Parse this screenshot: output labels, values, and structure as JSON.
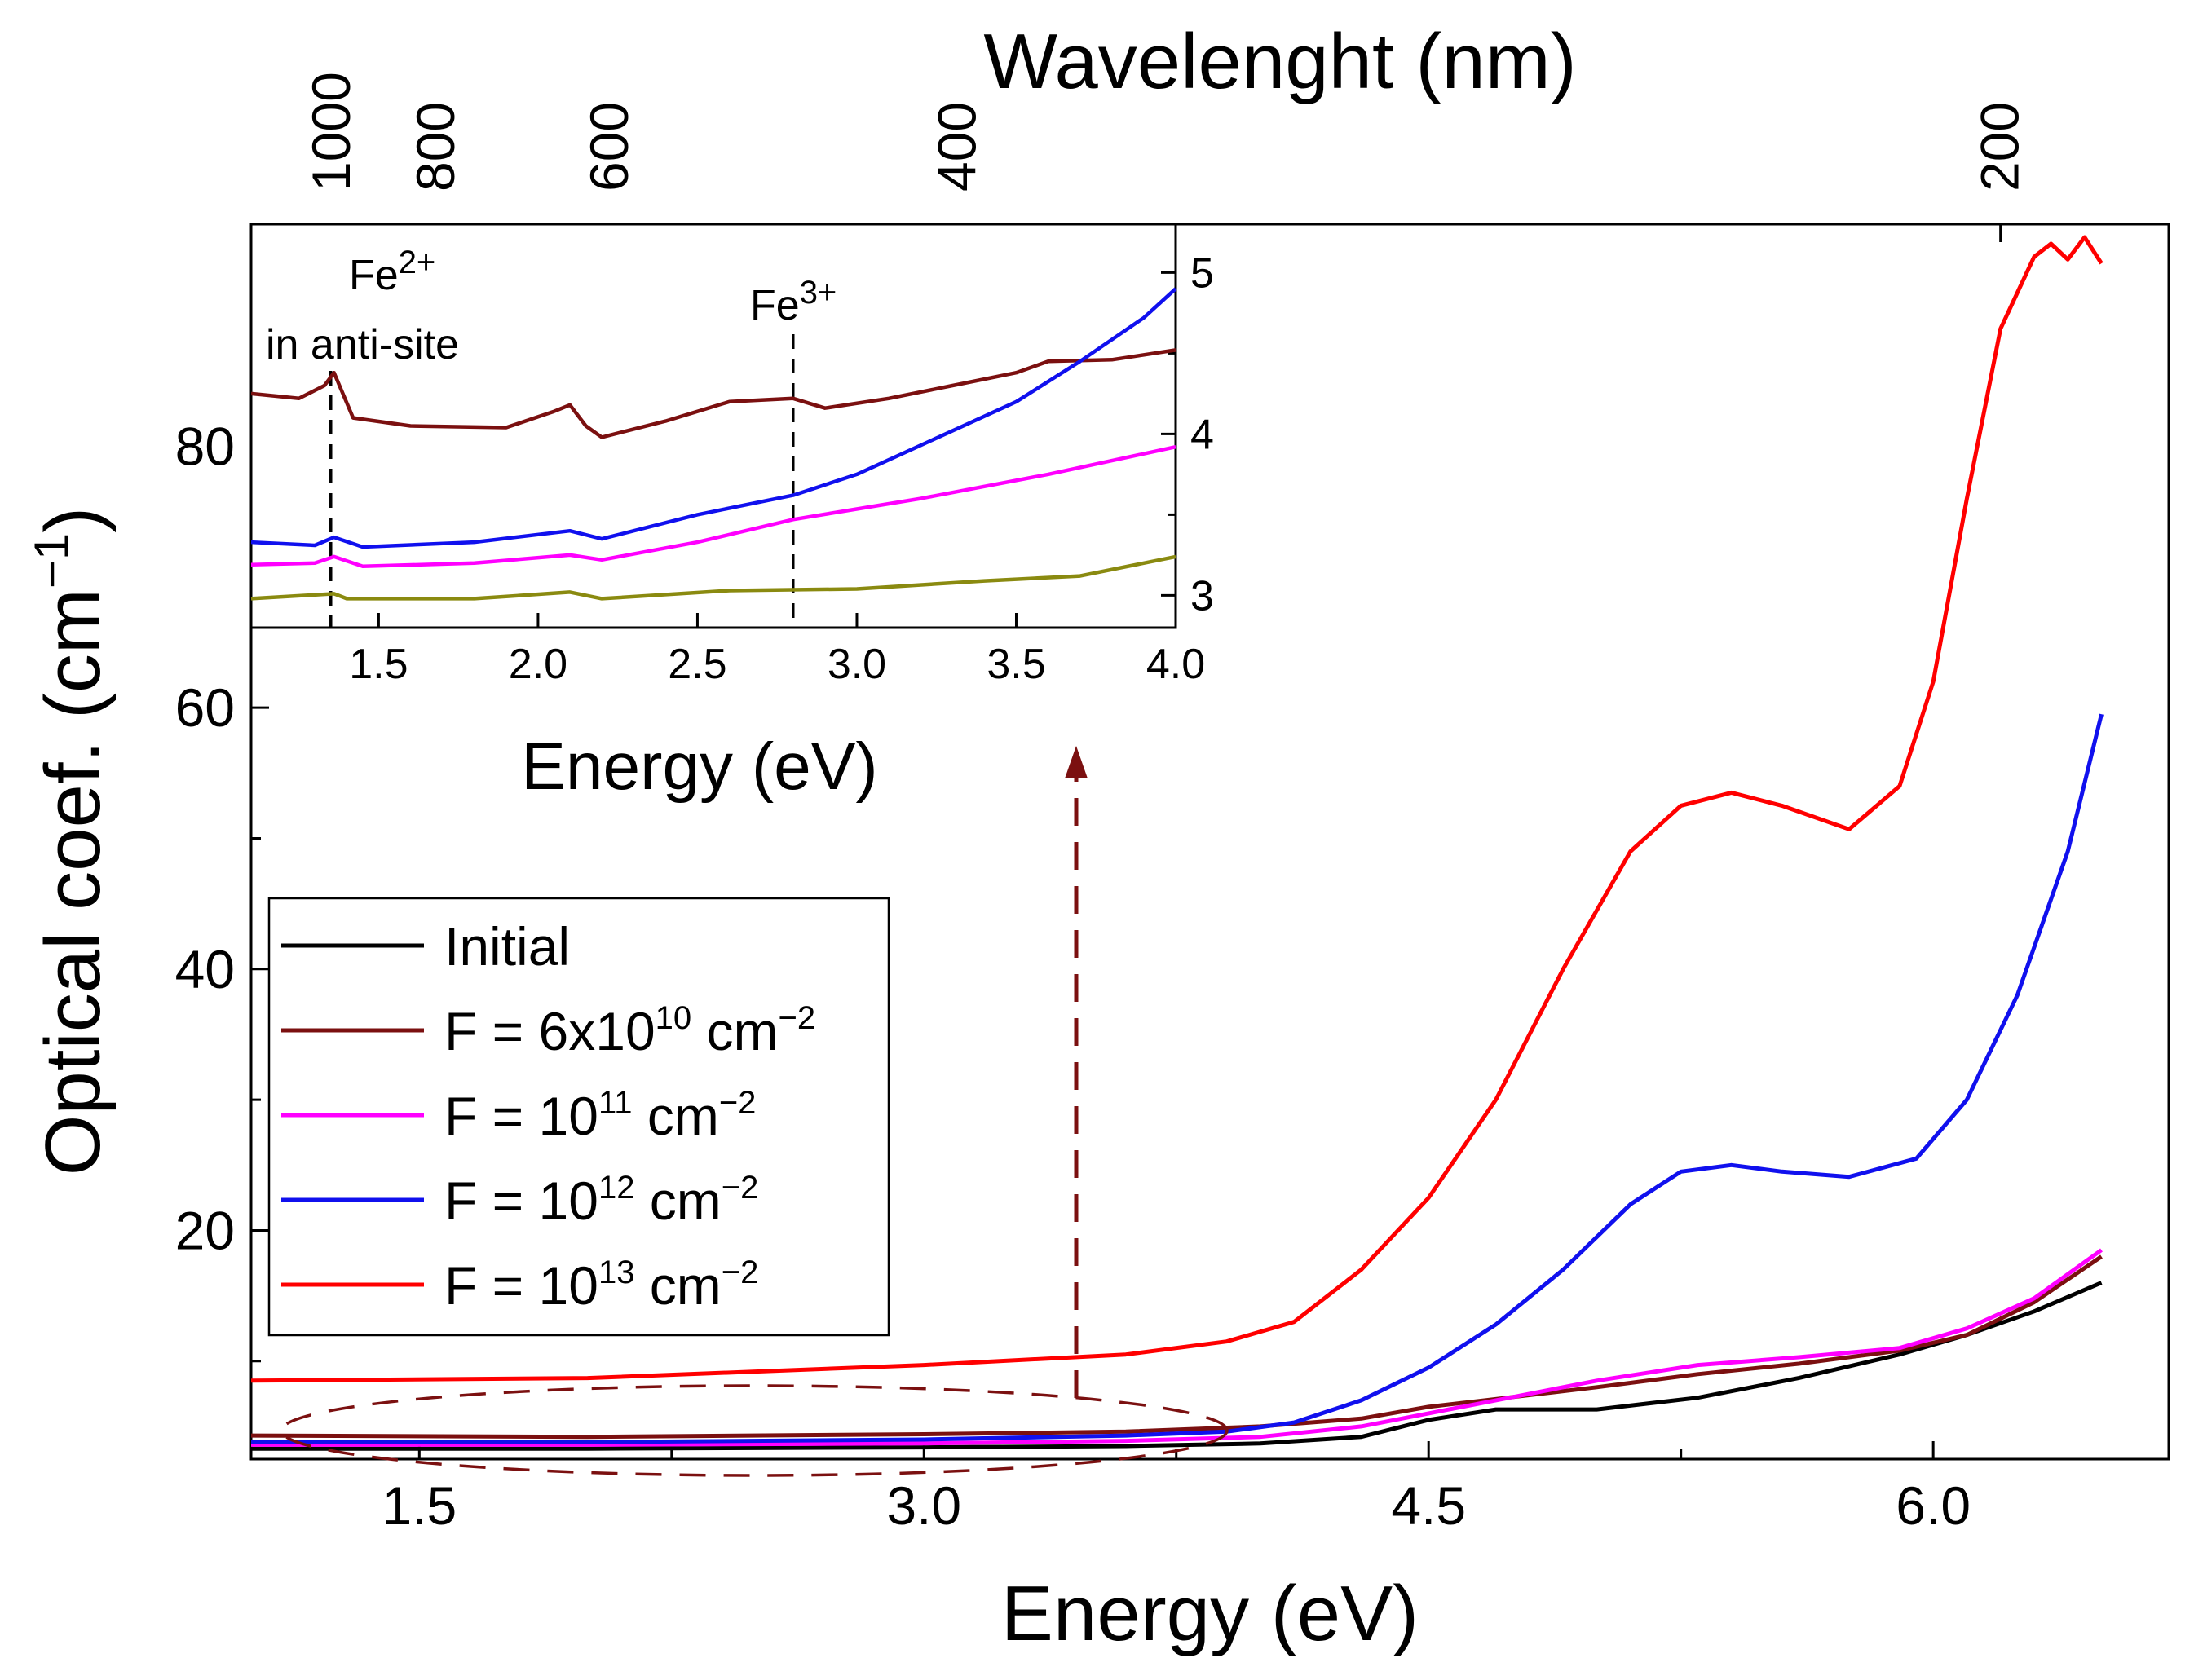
{
  "chart_data": [
    {
      "name": "main",
      "type": "line",
      "xlabel": "Energy (eV)",
      "ylabel_main": "Optical coef. (cm",
      "ylabel_sup": "−1",
      "ylabel_tail": ")",
      "top_axis_label": "Wavelenght (nm)",
      "xlim": [
        1.0,
        6.7
      ],
      "ylim": [
        2.5,
        97
      ],
      "xticks": [
        1.5,
        3.0,
        4.5,
        6.0
      ],
      "xtick_labels": [
        "1.5",
        "3.0",
        "4.5",
        "6.0"
      ],
      "yticks": [
        20,
        40,
        60,
        80
      ],
      "ytick_labels": [
        "20",
        "40",
        "60",
        "80"
      ],
      "top_ticks_nm": [
        1000,
        800,
        600,
        400,
        200
      ],
      "top_tick_labels": [
        "1000",
        "800",
        "600",
        "400",
        "200"
      ],
      "series": [
        {
          "name": "Initial",
          "color": "#000000",
          "x": [
            1.0,
            2.0,
            3.0,
            3.6,
            4.0,
            4.3,
            4.5,
            4.7,
            5.0,
            5.3,
            5.6,
            5.9,
            6.1,
            6.3,
            6.5
          ],
          "y": [
            3.3,
            3.3,
            3.4,
            3.5,
            3.7,
            4.2,
            5.5,
            6.3,
            6.3,
            7.2,
            8.7,
            10.5,
            12.0,
            13.8,
            16.0
          ]
        },
        {
          "name": "F = 6x10",
          "sup": "10",
          "tail": " cm",
          "tailsup": "−2",
          "color": "#7b1010",
          "x": [
            1.0,
            2.0,
            3.0,
            3.6,
            4.0,
            4.3,
            4.5,
            4.7,
            5.0,
            5.3,
            5.6,
            5.9,
            6.1,
            6.3,
            6.5
          ],
          "y": [
            4.3,
            4.2,
            4.4,
            4.6,
            5.0,
            5.6,
            6.5,
            7.1,
            8.0,
            9.0,
            9.8,
            10.8,
            12.0,
            14.5,
            18.0
          ]
        },
        {
          "name": "F = 10",
          "sup": "11",
          "tail": " cm",
          "tailsup": "−2",
          "color": "#ff00ff",
          "x": [
            1.0,
            2.0,
            3.0,
            3.6,
            4.0,
            4.3,
            4.5,
            4.7,
            5.0,
            5.3,
            5.6,
            5.9,
            6.1,
            6.3,
            6.5
          ],
          "y": [
            3.6,
            3.6,
            3.7,
            3.9,
            4.2,
            5.0,
            6.0,
            7.0,
            8.5,
            9.7,
            10.3,
            11.0,
            12.5,
            14.8,
            18.5
          ]
        },
        {
          "name": "F = 10",
          "sup": "12",
          "tail": " cm",
          "tailsup": "−2",
          "color": "#1010ee",
          "x": [
            1.0,
            2.0,
            3.0,
            3.6,
            3.9,
            4.1,
            4.3,
            4.5,
            4.7,
            4.9,
            5.1,
            5.25,
            5.4,
            5.55,
            5.75,
            5.95,
            6.1,
            6.25,
            6.4,
            6.5
          ],
          "y": [
            3.8,
            3.8,
            4.0,
            4.3,
            4.6,
            5.3,
            7.0,
            9.5,
            12.8,
            17.0,
            22.0,
            24.5,
            25.0,
            24.5,
            24.1,
            25.5,
            30.0,
            38.0,
            49.0,
            59.5
          ]
        },
        {
          "name": "F = 10",
          "sup": "13",
          "tail": " cm",
          "tailsup": "−2",
          "color": "#ff0000",
          "x": [
            1.0,
            2.0,
            2.5,
            3.0,
            3.6,
            3.9,
            4.1,
            4.3,
            4.5,
            4.7,
            4.9,
            5.1,
            5.25,
            5.4,
            5.55,
            5.75,
            5.9,
            6.0,
            6.1,
            6.2,
            6.3,
            6.35,
            6.4,
            6.45,
            6.5
          ],
          "y": [
            8.5,
            8.7,
            9.2,
            9.7,
            10.5,
            11.5,
            13.0,
            17.0,
            22.5,
            30.0,
            40.0,
            49.0,
            52.5,
            53.5,
            52.5,
            50.7,
            54.0,
            62.0,
            76.0,
            89.0,
            94.5,
            95.5,
            94.3,
            96.0,
            94.0
          ]
        }
      ],
      "legend_position": "lower-left",
      "annotations": {
        "ellipse_region": "low-energy curves",
        "arrow": "points up to inset"
      }
    },
    {
      "name": "inset",
      "type": "line",
      "xlabel": "Energy (eV)",
      "xlim": [
        1.1,
        4.0
      ],
      "ylim": [
        2.8,
        5.3
      ],
      "xticks": [
        1.5,
        2.0,
        2.5,
        3.0,
        3.5,
        4.0
      ],
      "xtick_labels": [
        "1.5",
        "2.0",
        "2.5",
        "3.0",
        "3.5",
        "4.0"
      ],
      "yticks": [
        3,
        4,
        5
      ],
      "ytick_labels": [
        "3",
        "4",
        "5"
      ],
      "markers": [
        {
          "x": 1.35,
          "label_main": "Fe",
          "label_sup": "2+",
          "label_line2": "in anti-site"
        },
        {
          "x": 2.8,
          "label_main": "Fe",
          "label_sup": "3+"
        }
      ],
      "series": [
        {
          "name": "6x10^10",
          "color": "#7b1010",
          "x": [
            1.1,
            1.25,
            1.33,
            1.36,
            1.42,
            1.6,
            1.9,
            2.05,
            2.1,
            2.15,
            2.2,
            2.4,
            2.6,
            2.8,
            2.9,
            3.1,
            3.3,
            3.5,
            3.6,
            3.8,
            4.0
          ],
          "y": [
            4.25,
            4.22,
            4.3,
            4.38,
            4.1,
            4.05,
            4.04,
            4.14,
            4.18,
            4.05,
            3.98,
            4.08,
            4.2,
            4.22,
            4.16,
            4.22,
            4.3,
            4.38,
            4.45,
            4.46,
            4.52
          ]
        },
        {
          "name": "10^12",
          "color": "#1010ee",
          "x": [
            1.1,
            1.3,
            1.36,
            1.45,
            1.8,
            2.1,
            2.2,
            2.5,
            2.8,
            3.0,
            3.2,
            3.5,
            3.7,
            3.9,
            4.0
          ],
          "y": [
            3.33,
            3.31,
            3.36,
            3.3,
            3.33,
            3.4,
            3.35,
            3.5,
            3.62,
            3.75,
            3.93,
            4.2,
            4.45,
            4.72,
            4.9
          ]
        },
        {
          "name": "10^11",
          "color": "#ff00ff",
          "x": [
            1.1,
            1.3,
            1.36,
            1.45,
            1.8,
            2.1,
            2.2,
            2.5,
            2.8,
            3.2,
            3.6,
            4.0
          ],
          "y": [
            3.19,
            3.2,
            3.24,
            3.18,
            3.2,
            3.25,
            3.22,
            3.33,
            3.47,
            3.6,
            3.75,
            3.92
          ]
        },
        {
          "name": "10^10",
          "color": "#8a8a10",
          "x": [
            1.1,
            1.36,
            1.4,
            1.8,
            2.1,
            2.2,
            2.6,
            3.0,
            3.4,
            3.7,
            4.0
          ],
          "y": [
            2.98,
            3.01,
            2.98,
            2.98,
            3.02,
            2.98,
            3.03,
            3.04,
            3.09,
            3.12,
            3.24
          ]
        }
      ]
    }
  ]
}
